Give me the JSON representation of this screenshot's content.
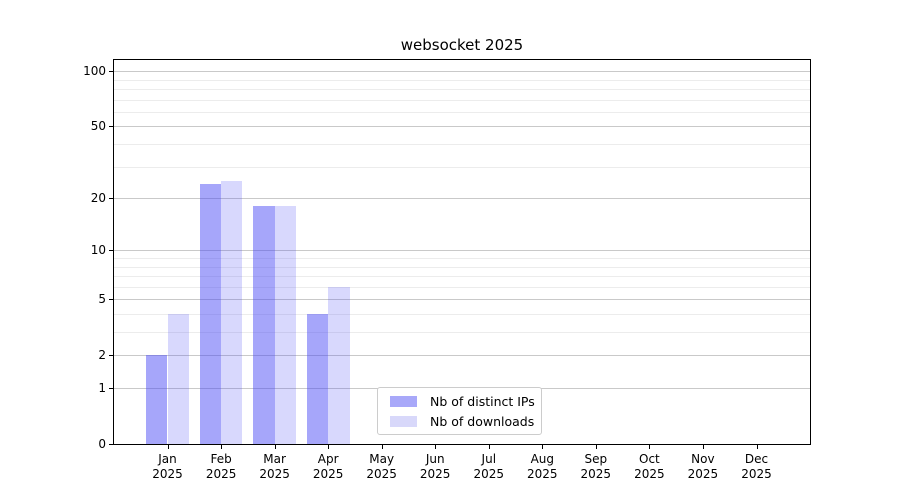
{
  "figure_title": "websocket 2025",
  "chart_data": {
    "type": "bar",
    "title": "websocket 2025",
    "categories": [
      "Jan",
      "Feb",
      "Mar",
      "Apr",
      "May",
      "Jun",
      "Jul",
      "Aug",
      "Sep",
      "Oct",
      "Nov",
      "Dec"
    ],
    "x_year_label": "2025",
    "series": [
      {
        "name": "Nb of distinct IPs",
        "fill": "rgba(70,70,245,0.48)",
        "solid": "#a8a8f9",
        "values": [
          2,
          24,
          18,
          4,
          0,
          0,
          0,
          0,
          0,
          0,
          0,
          0
        ]
      },
      {
        "name": "Nb of downloads",
        "fill": "rgba(70,70,245,0.21)",
        "solid": "#d8d8fa",
        "values": [
          4,
          25,
          18,
          6,
          0,
          0,
          0,
          0,
          0,
          0,
          0,
          0
        ]
      }
    ],
    "yscale": "symlog-ln(1+v)",
    "yticks": [
      0,
      1,
      2,
      5,
      10,
      20,
      50,
      100
    ],
    "minor_gridlines": [
      3,
      4,
      6,
      7,
      8,
      9,
      30,
      40,
      60,
      70,
      80,
      90
    ],
    "ylim": [
      0,
      115
    ],
    "xlabel": "",
    "ylabel": "",
    "grid": true,
    "legend_position": "lower center",
    "colors": {
      "major_grid": "#c9c9c9",
      "minor_grid": "#ececec",
      "spine": "#000000",
      "text": "#000000",
      "legend_border": "#cccccc"
    }
  }
}
